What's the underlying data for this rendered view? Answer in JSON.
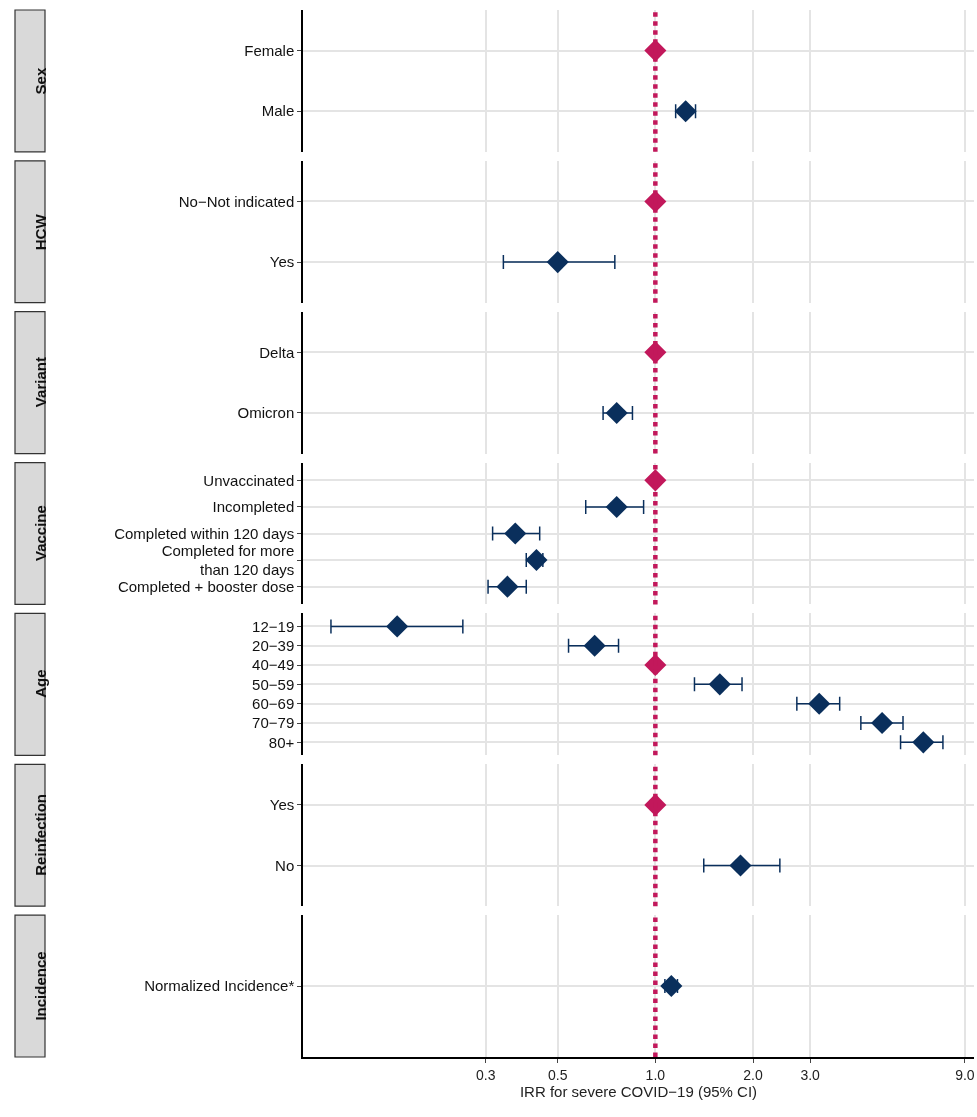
{
  "chart_data": [
    {
      "type": "scatter",
      "ylabel": "Sex",
      "orientation": "horizontal",
      "categories": [
        "Female",
        "Male"
      ],
      "values": [
        1.0,
        1.24
      ],
      "errors": [
        null,
        [
          1.155,
          1.33
        ]
      ],
      "colors": [
        "#c2185b",
        "#0a2f5c"
      ],
      "log": "x",
      "xlim": [
        0.082,
        9.6
      ],
      "xticks": [
        0.3,
        0.5,
        1,
        2,
        3,
        9
      ],
      "tick_labels": "y",
      "grid": true,
      "marker": "diamond",
      "ref_lines": [
        {
          "axis": "x",
          "value": 1,
          "color": "#c2185b",
          "line_style": "dotted"
        }
      ]
    },
    {
      "type": "scatter",
      "ylabel": "HCW",
      "orientation": "horizontal",
      "categories": [
        "No−Not indicated",
        "Yes"
      ],
      "values": [
        1.0,
        0.5
      ],
      "errors": [
        null,
        [
          0.34,
          0.75
        ]
      ],
      "colors": [
        "#c2185b",
        "#0a2f5c"
      ],
      "log": "x",
      "xlim": [
        0.082,
        9.6
      ],
      "xticks": [
        0.3,
        0.5,
        1,
        2,
        3,
        9
      ],
      "tick_labels": "y",
      "grid": true,
      "marker": "diamond",
      "ref_lines": [
        {
          "axis": "x",
          "value": 1,
          "color": "#c2185b",
          "line_style": "dotted"
        }
      ]
    },
    {
      "type": "scatter",
      "ylabel": "Variant",
      "orientation": "horizontal",
      "categories": [
        "Delta",
        "Omicron"
      ],
      "values": [
        1.0,
        0.76
      ],
      "errors": [
        null,
        [
          0.69,
          0.85
        ]
      ],
      "colors": [
        "#c2185b",
        "#0a2f5c"
      ],
      "log": "x",
      "xlim": [
        0.082,
        9.6
      ],
      "xticks": [
        0.3,
        0.5,
        1,
        2,
        3,
        9
      ],
      "tick_labels": "y",
      "grid": true,
      "marker": "diamond",
      "ref_lines": [
        {
          "axis": "x",
          "value": 1,
          "color": "#c2185b",
          "line_style": "dotted"
        }
      ]
    },
    {
      "type": "scatter",
      "ylabel": "Vaccine",
      "orientation": "horizontal",
      "categories": [
        "Unvaccinated",
        "Incompleted",
        "Completed within 120 days",
        "Completed for more\nthan 120 days",
        "Completed + booster dose"
      ],
      "values": [
        1.0,
        0.76,
        0.37,
        0.43,
        0.35
      ],
      "errors": [
        null,
        [
          0.61,
          0.92
        ],
        [
          0.315,
          0.44
        ],
        [
          0.4,
          0.45
        ],
        [
          0.305,
          0.4
        ]
      ],
      "colors": [
        "#c2185b",
        "#0a2f5c",
        "#0a2f5c",
        "#0a2f5c",
        "#0a2f5c"
      ],
      "log": "x",
      "xlim": [
        0.082,
        9.6
      ],
      "xticks": [
        0.3,
        0.5,
        1,
        2,
        3,
        9
      ],
      "tick_labels": "y",
      "grid": true,
      "marker": "diamond",
      "ref_lines": [
        {
          "axis": "x",
          "value": 1,
          "color": "#c2185b",
          "line_style": "dotted"
        }
      ]
    },
    {
      "type": "scatter",
      "ylabel": "Age",
      "orientation": "horizontal",
      "categories": [
        "12−19",
        "20−39",
        "40−49",
        "50−59",
        "60−69",
        "70−79",
        "80+"
      ],
      "values": [
        0.16,
        0.65,
        1.0,
        1.58,
        3.2,
        5.0,
        6.7
      ],
      "errors": [
        [
          0.1,
          0.255
        ],
        [
          0.54,
          0.77
        ],
        null,
        [
          1.32,
          1.85
        ],
        [
          2.73,
          3.7
        ],
        [
          4.3,
          5.8
        ],
        [
          5.7,
          7.7
        ]
      ],
      "colors": [
        "#0a2f5c",
        "#0a2f5c",
        "#c2185b",
        "#0a2f5c",
        "#0a2f5c",
        "#0a2f5c",
        "#0a2f5c"
      ],
      "log": "x",
      "xlim": [
        0.082,
        9.6
      ],
      "xticks": [
        0.3,
        0.5,
        1,
        2,
        3,
        9
      ],
      "tick_labels": "y",
      "grid": true,
      "marker": "diamond",
      "ref_lines": [
        {
          "axis": "x",
          "value": 1,
          "color": "#c2185b",
          "line_style": "dotted"
        }
      ]
    },
    {
      "type": "scatter",
      "ylabel": "Reinfection",
      "orientation": "horizontal",
      "categories": [
        "Yes",
        "No"
      ],
      "values": [
        1.0,
        1.83
      ],
      "errors": [
        null,
        [
          1.41,
          2.42
        ]
      ],
      "colors": [
        "#c2185b",
        "#0a2f5c"
      ],
      "log": "x",
      "xlim": [
        0.082,
        9.6
      ],
      "xticks": [
        0.3,
        0.5,
        1,
        2,
        3,
        9
      ],
      "tick_labels": "y",
      "grid": true,
      "marker": "diamond",
      "ref_lines": [
        {
          "axis": "x",
          "value": 1,
          "color": "#c2185b",
          "line_style": "dotted"
        }
      ]
    },
    {
      "type": "scatter",
      "ylabel": "Incidence",
      "orientation": "horizontal",
      "categories": [
        "Normalized Incidence*"
      ],
      "values": [
        1.12
      ],
      "errors": [
        [
          1.07,
          1.17
        ]
      ],
      "colors": [
        "#0a2f5c"
      ],
      "log": "x",
      "xlim": [
        0.082,
        9.6
      ],
      "xticks": [
        0.3,
        0.5,
        {
          "value": 1,
          "label": "1.0"
        },
        {
          "value": 2,
          "label": "2.0"
        },
        {
          "value": 3,
          "label": "3.0"
        },
        {
          "value": 9,
          "label": "9.0"
        }
      ],
      "xlabel": "IRR for severe COVID−19 (95% CI)",
      "grid": true,
      "marker": "diamond",
      "ref_lines": [
        {
          "axis": "x",
          "value": 1,
          "color": "#c2185b",
          "line_style": "dotted"
        }
      ]
    }
  ]
}
